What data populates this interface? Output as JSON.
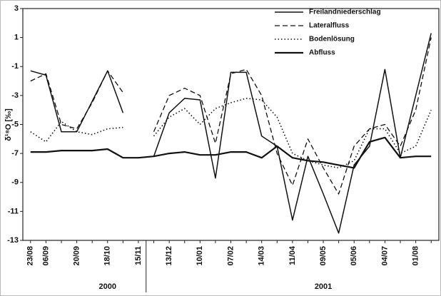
{
  "chart_data": {
    "type": "line",
    "y_label": "δ¹⁸O [‰]",
    "categories": [
      "23/08",
      "06/09",
      null,
      "20/09",
      null,
      "18/10",
      null,
      "15/11",
      null,
      "13/12",
      null,
      "10/01",
      null,
      "07/02",
      null,
      "14/03",
      null,
      "11/04",
      null,
      "09/05",
      null,
      "05/06",
      null,
      "04/07",
      null,
      "01/08",
      null
    ],
    "year_labels": [
      "2000",
      "2001"
    ],
    "ylim": [
      -13,
      3
    ],
    "yticks": [
      -13,
      -11,
      -9,
      -7,
      -5,
      -3,
      -1,
      1,
      3
    ],
    "legend": "top-right",
    "series": [
      {
        "name": "Freilandniederschlag",
        "color": "#111111",
        "style": "solid",
        "values": [
          -1.3,
          -1.6,
          -5.5,
          -5.5,
          -3.4,
          -1.3,
          -4.2,
          null,
          -7.2,
          -4.2,
          -3.2,
          -3.3,
          -8.7,
          -1.4,
          -1.4,
          -5.8,
          -6.5,
          -11.6,
          -7.2,
          -9.8,
          -12.5,
          -7.8,
          -6.5,
          -1.2,
          -7.3,
          -3,
          1.3
        ]
      },
      {
        "name": "Lateralfluss",
        "color": "#111111",
        "style": "dashed",
        "values": [
          -2,
          -1.5,
          -5,
          -5.3,
          -3.5,
          -1.3,
          -2.8,
          null,
          -5.5,
          -3,
          -2.5,
          -3,
          -6.3,
          -1.5,
          -1.2,
          -3,
          -7,
          -9.2,
          -6,
          -8,
          -9.8,
          -6.5,
          -5.3,
          -5,
          -6.5,
          -4,
          1
        ]
      },
      {
        "name": "Bodenlösung",
        "color": "#111111",
        "style": "dotted",
        "values": [
          -5.5,
          -6.2,
          -4.8,
          -5.5,
          -5.7,
          -5.3,
          -5.2,
          null,
          -5.8,
          -4.5,
          -3.9,
          -5,
          -3.9,
          -3.5,
          -3.2,
          -3.3,
          -4.5,
          -7,
          -7.5,
          -7.8,
          -8,
          -7.5,
          -5.3,
          -5.3,
          -7,
          -6.5,
          -4
        ]
      },
      {
        "name": "Abfluss",
        "color": "#111111",
        "style": "solid-thick",
        "values": [
          -6.9,
          -6.9,
          -6.8,
          -6.8,
          -6.8,
          -6.7,
          -7.3,
          -7.3,
          -7.2,
          -7,
          -6.9,
          -7.1,
          -7.1,
          -6.9,
          -6.9,
          -7.3,
          -6.5,
          -7.3,
          -7.5,
          -7.6,
          -7.8,
          -8,
          -6.2,
          -5.9,
          -7.3,
          -7.2,
          -7.2
        ]
      }
    ]
  }
}
